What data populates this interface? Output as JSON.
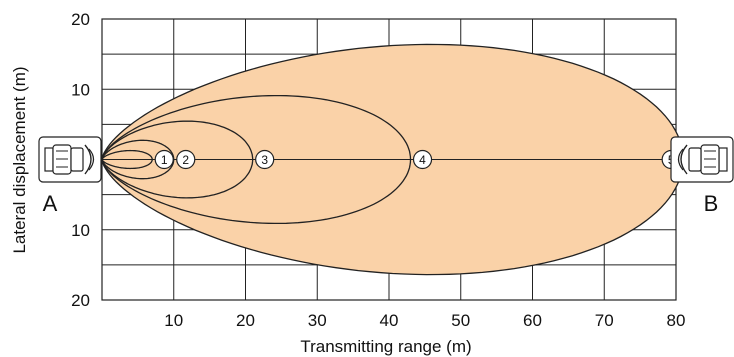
{
  "chart_data": {
    "type": "area",
    "xlabel": "Transmitting range (m)",
    "ylabel": "Lateral displacement (m)",
    "x_ticks": [
      "10",
      "20",
      "30",
      "40",
      "50",
      "60",
      "70",
      "80"
    ],
    "y_ticks": [
      "20",
      "10",
      "10",
      "20"
    ],
    "xlim": [
      0,
      80
    ],
    "ylim": [
      -20,
      20
    ],
    "grid": true,
    "fill_color": "#fad2a8",
    "series": [
      {
        "label": "1",
        "max_range": 7,
        "max_lateral": 1.4
      },
      {
        "label": "2",
        "max_range": 10,
        "max_lateral": 3.0
      },
      {
        "label": "3",
        "max_range": 21,
        "max_lateral": 6.0
      },
      {
        "label": "4",
        "max_range": 43,
        "max_lateral": 10.0
      },
      {
        "label": "5",
        "max_range": 81,
        "max_lateral": 18.0
      }
    ],
    "endpoints": {
      "left": "A",
      "right": "B"
    },
    "icons": [
      "transmitter-icon",
      "receiver-icon"
    ]
  }
}
